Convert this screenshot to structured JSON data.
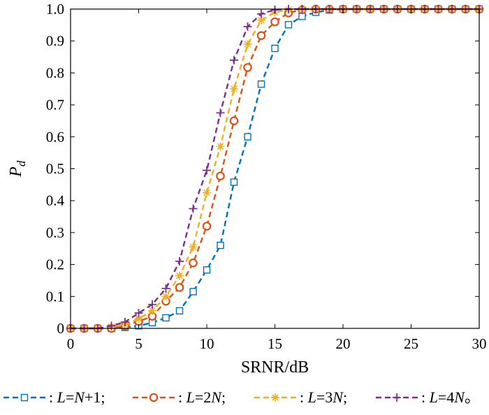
{
  "chart_data": {
    "type": "line",
    "xlabel": "SRNR/dB",
    "ylabel": "P",
    "ylabel_sub": "d",
    "xlim": [
      0,
      30
    ],
    "ylim": [
      0,
      1
    ],
    "x_ticks": [
      0,
      5,
      10,
      15,
      20,
      25,
      30
    ],
    "y_ticks": [
      0,
      0.1,
      0.2,
      0.3,
      0.4,
      0.5,
      0.6,
      0.7,
      0.8,
      0.9,
      1.0
    ],
    "y_tick_labels": [
      "0",
      "0.1",
      "0.2",
      "0.3",
      "0.4",
      "0.5",
      "0.6",
      "0.7",
      "0.8",
      "0.9",
      "1.0"
    ],
    "grid": false,
    "legend_placement": "bottom",
    "x": [
      0,
      1,
      2,
      3,
      4,
      5,
      6,
      7,
      8,
      9,
      10,
      11,
      12,
      13,
      14,
      15,
      16,
      17,
      18,
      19,
      20,
      21,
      22,
      23,
      24,
      25,
      26,
      27,
      28,
      29,
      30
    ],
    "series": [
      {
        "legend_parts": [
          ": ",
          "L",
          "=",
          "N",
          "+1;"
        ],
        "color": "#0072BD",
        "marker": "square",
        "values": [
          0,
          0,
          0,
          0,
          0.003,
          0.008,
          0.018,
          0.033,
          0.055,
          0.115,
          0.183,
          0.26,
          0.458,
          0.6,
          0.765,
          0.877,
          0.951,
          0.977,
          0.99,
          0.997,
          1,
          1,
          1,
          1,
          1,
          1,
          1,
          1,
          1,
          1,
          1
        ]
      },
      {
        "legend_parts": [
          ": ",
          "L",
          "=2",
          "N",
          ";"
        ],
        "color": "#D95319",
        "marker": "circle",
        "values": [
          0,
          0,
          0,
          0,
          0.008,
          0.022,
          0.038,
          0.085,
          0.128,
          0.205,
          0.32,
          0.477,
          0.65,
          0.817,
          0.917,
          0.96,
          0.988,
          0.998,
          1,
          1,
          1,
          1,
          1,
          1,
          1,
          1,
          1,
          1,
          1,
          1,
          1
        ]
      },
      {
        "legend_parts": [
          ": ",
          "L",
          "=3",
          "N",
          ";"
        ],
        "color": "#EDB120",
        "marker": "star",
        "values": [
          0,
          0,
          0,
          0.005,
          0.012,
          0.03,
          0.055,
          0.1,
          0.165,
          0.255,
          0.425,
          0.57,
          0.75,
          0.89,
          0.965,
          0.99,
          0.998,
          1,
          1,
          1,
          1,
          1,
          1,
          1,
          1,
          1,
          1,
          1,
          1,
          1,
          1
        ]
      },
      {
        "legend_parts": [
          ": ",
          "L",
          "=4",
          "N",
          "。"
        ],
        "color": "#7E2F8E",
        "marker": "plus",
        "values": [
          0,
          0,
          0,
          0.008,
          0.02,
          0.048,
          0.075,
          0.125,
          0.21,
          0.375,
          0.495,
          0.675,
          0.84,
          0.945,
          0.985,
          0.998,
          1,
          1,
          1,
          1,
          1,
          1,
          1,
          1,
          1,
          1,
          1,
          1,
          1,
          1,
          1
        ]
      }
    ]
  }
}
